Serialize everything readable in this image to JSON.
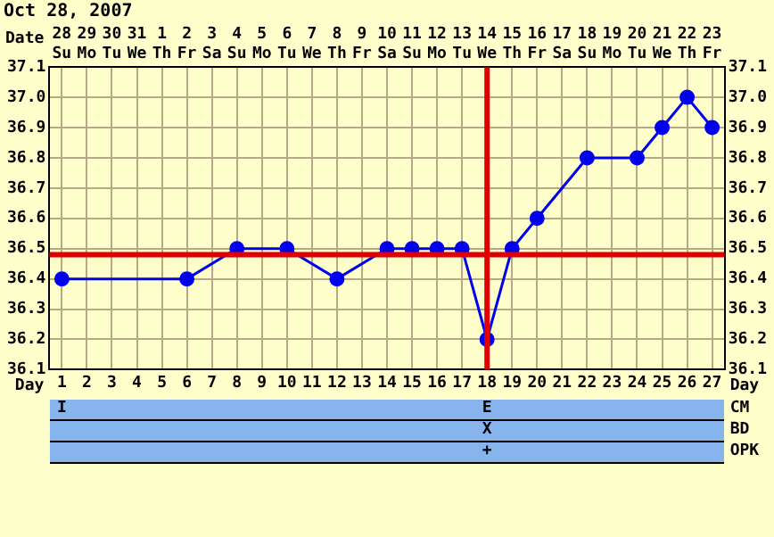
{
  "chart_data": {
    "type": "line",
    "title": "Oct 28, 2007",
    "xlabel": "Day",
    "x2label": "Date",
    "x": [
      1,
      2,
      3,
      4,
      5,
      6,
      7,
      8,
      9,
      10,
      11,
      12,
      13,
      14,
      15,
      16,
      17,
      18,
      19,
      20,
      21,
      22,
      23,
      24,
      25,
      26,
      27
    ],
    "series": [
      {
        "color": "#0000ee",
        "values": [
          36.4,
          null,
          null,
          null,
          null,
          36.4,
          null,
          36.5,
          null,
          36.5,
          null,
          36.4,
          null,
          36.5,
          36.5,
          36.5,
          36.5,
          36.2,
          36.5,
          36.6,
          null,
          36.8,
          null,
          36.8,
          36.9,
          37.0,
          36.9
        ]
      }
    ],
    "xlim": [
      0.5,
      27.5
    ],
    "xticks": [
      1,
      2,
      3,
      4,
      5,
      6,
      7,
      8,
      9,
      10,
      11,
      12,
      13,
      14,
      15,
      16,
      17,
      18,
      19,
      20,
      21,
      22,
      23,
      24,
      25,
      26,
      27
    ],
    "x2lim": [
      "2007-10-27T12:00",
      "2007-11-23T12:00"
    ],
    "x2ticks": [
      {
        "value": "2007-10-28",
        "label": "28 Su"
      },
      {
        "value": "2007-10-29",
        "label": "29 Mo"
      },
      {
        "value": "2007-10-30",
        "label": "30 Tu"
      },
      {
        "value": "2007-10-31",
        "label": "31 We"
      },
      {
        "value": "2007-11-01",
        "label": "1 Th"
      },
      {
        "value": "2007-11-02",
        "label": "2 Fr"
      },
      {
        "value": "2007-11-03",
        "label": "3 Sa"
      },
      {
        "value": "2007-11-04",
        "label": "4 Su"
      },
      {
        "value": "2007-11-05",
        "label": "5 Mo"
      },
      {
        "value": "2007-11-06",
        "label": "6 Tu"
      },
      {
        "value": "2007-11-07",
        "label": "7 We"
      },
      {
        "value": "2007-11-08",
        "label": "8 Th"
      },
      {
        "value": "2007-11-09",
        "label": "9 Fr"
      },
      {
        "value": "2007-11-10",
        "label": "10 Sa"
      },
      {
        "value": "2007-11-11",
        "label": "11 Su"
      },
      {
        "value": "2007-11-12",
        "label": "12 Mo"
      },
      {
        "value": "2007-11-13",
        "label": "13 Tu"
      },
      {
        "value": "2007-11-14",
        "label": "14 We"
      },
      {
        "value": "2007-11-15",
        "label": "15 Th"
      },
      {
        "value": "2007-11-16",
        "label": "16 Fr"
      },
      {
        "value": "2007-11-17",
        "label": "17 Sa"
      },
      {
        "value": "2007-11-18",
        "label": "18 Su"
      },
      {
        "value": "2007-11-19",
        "label": "19 Mo"
      },
      {
        "value": "2007-11-20",
        "label": "20 Tu"
      },
      {
        "value": "2007-11-21",
        "label": "21 We"
      },
      {
        "value": "2007-11-22",
        "label": "22 Th"
      },
      {
        "value": "2007-11-23",
        "label": "23 Fr"
      }
    ],
    "ylim": [
      36.1,
      37.1
    ],
    "yticks": [
      {
        "value": 36.1,
        "label": "36.1"
      },
      {
        "value": 36.2,
        "label": "36.2"
      },
      {
        "value": 36.3,
        "label": "36.3"
      },
      {
        "value": 36.4,
        "label": "36.4"
      },
      {
        "value": 36.5,
        "label": "36.5"
      },
      {
        "value": 36.6,
        "label": "36.6"
      },
      {
        "value": 36.7,
        "label": "36.7"
      },
      {
        "value": 36.8,
        "label": "36.8"
      },
      {
        "value": 36.9,
        "label": "36.9"
      },
      {
        "value": 37.0,
        "label": "37.0"
      },
      {
        "value": 37.1,
        "label": "37.1"
      }
    ],
    "y2lim": [
      36.1,
      37.1
    ],
    "y2ticks": [
      {
        "value": 36.1,
        "label": "36.1"
      },
      {
        "value": 36.2,
        "label": "36.2"
      },
      {
        "value": 36.3,
        "label": "36.3"
      },
      {
        "value": 36.4,
        "label": "36.4"
      },
      {
        "value": 36.5,
        "label": "36.5"
      },
      {
        "value": 36.6,
        "label": "36.6"
      },
      {
        "value": 36.7,
        "label": "36.7"
      },
      {
        "value": 36.8,
        "label": "36.8"
      },
      {
        "value": 36.9,
        "label": "36.9"
      },
      {
        "value": 37.0,
        "label": "37.0"
      },
      {
        "value": 37.1,
        "label": "37.1"
      }
    ],
    "ref_lines": [
      {
        "axis": "y",
        "value": 36.48,
        "color": "#e00000"
      },
      {
        "axis": "x",
        "value": 18,
        "color": "#e00000"
      }
    ],
    "grid": true,
    "legend": false,
    "marker": "circle",
    "annotations": [
      "CM",
      "BD",
      "OPK",
      "I",
      "E",
      "X",
      "+"
    ]
  }
}
